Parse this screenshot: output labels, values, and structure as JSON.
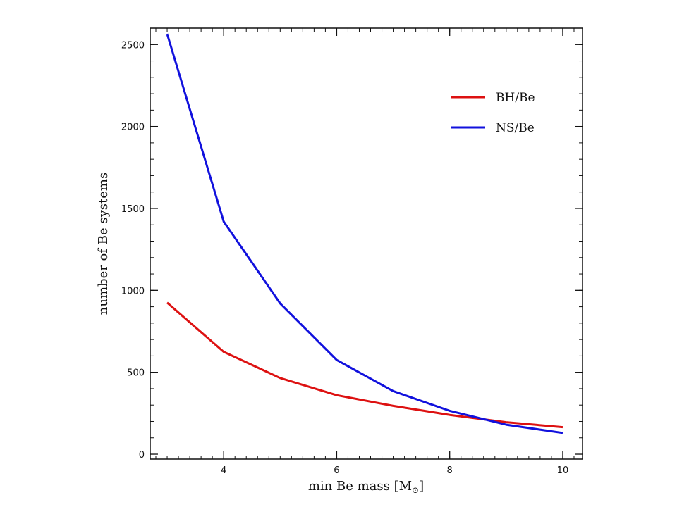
{
  "chart_data": {
    "type": "line",
    "title": "",
    "xlabel": "min Be mass [M",
    "xlabel_sub": "⊙",
    "xlabel_close": "]",
    "ylabel": "number of Be systems",
    "xlim": [
      2.7,
      10.35
    ],
    "ylim": [
      -30,
      2600
    ],
    "xticks": [
      4,
      6,
      8,
      10
    ],
    "xtick_labels": [
      "4",
      "6",
      "8",
      "10"
    ],
    "xminor_step": 0.2,
    "yticks": [
      0,
      500,
      1000,
      1500,
      2000,
      2500
    ],
    "ytick_labels": [
      "0",
      "500",
      "1000",
      "1500",
      "2000",
      "2500"
    ],
    "yminor_step": 100,
    "grid": false,
    "legend_position": "top-right",
    "x": [
      3,
      4,
      5,
      6,
      7,
      8,
      9,
      10
    ],
    "series": [
      {
        "name": "BH/Be",
        "color": "#dd1111",
        "values": [
          925,
          625,
          465,
          360,
          295,
          240,
          195,
          165
        ]
      },
      {
        "name": "NS/Be",
        "color": "#1111dd",
        "values": [
          2565,
          1420,
          920,
          575,
          385,
          265,
          180,
          130
        ]
      }
    ]
  }
}
